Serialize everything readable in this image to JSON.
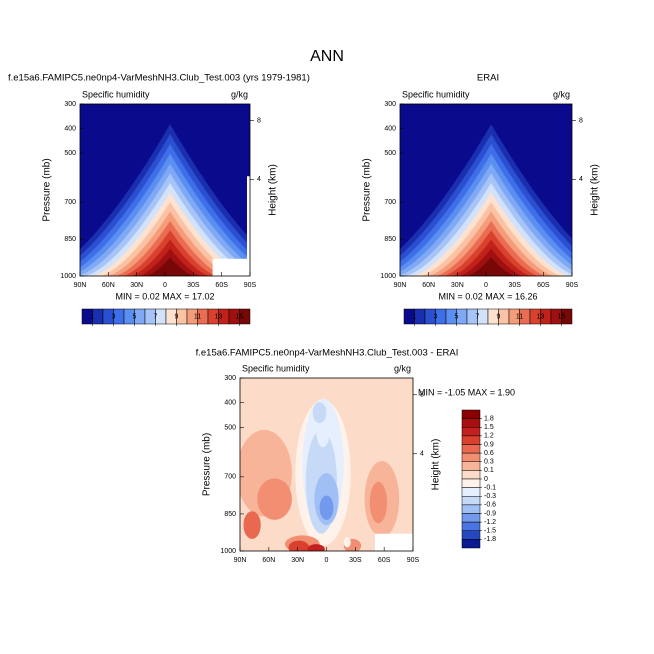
{
  "title": "ANN",
  "chart_data": [
    {
      "type": "contour",
      "title": "f.e15a6.FAMIPC5.ne0np4-VarMeshNH3.Club_Test.003 (yrs 1979-1981)",
      "left_label": "Specific humidity",
      "right_label": "g/kg",
      "ylabel": "Pressure (mb)",
      "y2label": "Height (km)",
      "ylim": [
        1000,
        300
      ],
      "yticks": [
        300,
        400,
        500,
        700,
        850,
        1000
      ],
      "y2ticks": [
        8,
        4
      ],
      "xlim": [
        90,
        -90
      ],
      "xticks": [
        {
          "value": 90,
          "label": "90N"
        },
        {
          "value": 60,
          "label": "60N"
        },
        {
          "value": 30,
          "label": "30N"
        },
        0,
        {
          "value": -30,
          "label": "30S"
        },
        {
          "value": -60,
          "label": "60S"
        },
        {
          "value": -90,
          "label": "90S"
        }
      ],
      "annotation": "MIN =  0.02   MAX = 17.02",
      "colorbar": {
        "levels": [
          1,
          3,
          5,
          7,
          9,
          11,
          13,
          15
        ],
        "colors": [
          "#0a0a8c",
          "#1a2fb0",
          "#2a4fd0",
          "#3f6fe8",
          "#5a8ef0",
          "#7fa8f5",
          "#a6c4f8",
          "#d2e2fb",
          "#fde2cf",
          "#fbc3a4",
          "#f59c7a",
          "#ea6c52",
          "#d8412e",
          "#c0221a",
          "#a01010",
          "#780808"
        ]
      }
    },
    {
      "type": "contour",
      "title": "ERAI",
      "left_label": "Specific humidity",
      "right_label": "g/kg",
      "ylabel": "Pressure (mb)",
      "y2label": "Height (km)",
      "ylim": [
        1000,
        300
      ],
      "yticks": [
        300,
        400,
        500,
        700,
        850,
        1000
      ],
      "y2ticks": [
        8,
        4
      ],
      "xlim": [
        90,
        -90
      ],
      "xticks": [
        {
          "value": 90,
          "label": "90N"
        },
        {
          "value": 60,
          "label": "60N"
        },
        {
          "value": 30,
          "label": "30N"
        },
        0,
        {
          "value": -30,
          "label": "30S"
        },
        {
          "value": -60,
          "label": "60S"
        },
        {
          "value": -90,
          "label": "90S"
        }
      ],
      "annotation": "MIN =  0.02   MAX = 16.26",
      "colorbar": {
        "levels": [
          1,
          3,
          5,
          7,
          9,
          11,
          13,
          15
        ],
        "colors": [
          "#0a0a8c",
          "#1a2fb0",
          "#2a4fd0",
          "#3f6fe8",
          "#5a8ef0",
          "#7fa8f5",
          "#a6c4f8",
          "#d2e2fb",
          "#fde2cf",
          "#fbc3a4",
          "#f59c7a",
          "#ea6c52",
          "#d8412e",
          "#c0221a",
          "#a01010",
          "#780808"
        ]
      }
    },
    {
      "type": "contour",
      "title": "f.e15a6.FAMIPC5.ne0np4-VarMeshNH3.Club_Test.003 - ERAI",
      "left_label": "Specific humidity",
      "right_label": "g/kg",
      "ylabel": "Pressure (mb)",
      "y2label": "Height (km)",
      "ylim": [
        1000,
        300
      ],
      "yticks": [
        300,
        400,
        500,
        700,
        850,
        1000
      ],
      "y2ticks": [
        8,
        4
      ],
      "xlim": [
        90,
        -90
      ],
      "xticks": [
        {
          "value": 90,
          "label": "90N"
        },
        {
          "value": 60,
          "label": "60N"
        },
        {
          "value": 30,
          "label": "30N"
        },
        0,
        {
          "value": -30,
          "label": "30S"
        },
        {
          "value": -60,
          "label": "60S"
        },
        {
          "value": -90,
          "label": "90S"
        }
      ],
      "annotation": "MIN = -1.05   MAX =  1.90",
      "colorbar": {
        "levels": [
          1.8,
          1.5,
          1.2,
          0.9,
          0.6,
          0.3,
          0.1,
          0,
          -0.1,
          -0.3,
          -0.6,
          -0.9,
          -1.2,
          -1.5,
          -1.8
        ],
        "colors": [
          "#8b0000",
          "#a80f0f",
          "#c42020",
          "#d9412e",
          "#e86850",
          "#f28f72",
          "#f8b498",
          "#fcdcc8",
          "#fff2ea",
          "#e6effd",
          "#c6daf8",
          "#a0bff4",
          "#7399ec",
          "#4a74e0",
          "#2548c2",
          "#0a1a92"
        ]
      }
    }
  ]
}
